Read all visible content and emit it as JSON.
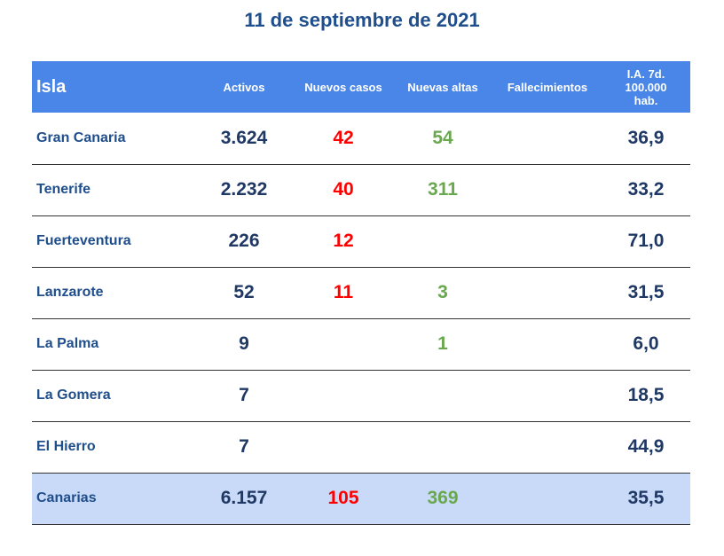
{
  "title": "11 de septiembre de 2021",
  "colors": {
    "header_bg": "#4a86e8",
    "total_bg": "#c9daf8",
    "new_cases": "#ff0000",
    "discharges": "#6aa84f",
    "text": "#1f3864"
  },
  "headers": {
    "isla": "Isla",
    "activos": "Activos",
    "nuevos_casos": "Nuevos casos",
    "nuevas_altas": "Nuevas altas",
    "fallecimientos": "Fallecimientos",
    "ia": "I.A. 7d.\n100.000\nhab."
  },
  "rows": [
    {
      "isla": "Gran Canaria",
      "activos": "3.624",
      "nuevos_casos": "42",
      "nuevas_altas": "54",
      "fallecimientos": "",
      "ia": "36,9"
    },
    {
      "isla": "Tenerife",
      "activos": "2.232",
      "nuevos_casos": "40",
      "nuevas_altas": "311",
      "fallecimientos": "",
      "ia": "33,2"
    },
    {
      "isla": "Fuerteventura",
      "activos": "226",
      "nuevos_casos": "12",
      "nuevas_altas": "",
      "fallecimientos": "",
      "ia": "71,0"
    },
    {
      "isla": "Lanzarote",
      "activos": "52",
      "nuevos_casos": "11",
      "nuevas_altas": "3",
      "fallecimientos": "",
      "ia": "31,5"
    },
    {
      "isla": "La Palma",
      "activos": "9",
      "nuevos_casos": "",
      "nuevas_altas": "1",
      "fallecimientos": "",
      "ia": "6,0"
    },
    {
      "isla": "La Gomera",
      "activos": "7",
      "nuevos_casos": "",
      "nuevas_altas": "",
      "fallecimientos": "",
      "ia": "18,5"
    },
    {
      "isla": "El Hierro",
      "activos": "7",
      "nuevos_casos": "",
      "nuevas_altas": "",
      "fallecimientos": "",
      "ia": "44,9"
    }
  ],
  "total": {
    "isla": "Canarias",
    "activos": "6.157",
    "nuevos_casos": "105",
    "nuevas_altas": "369",
    "fallecimientos": "",
    "ia": "35,5"
  }
}
